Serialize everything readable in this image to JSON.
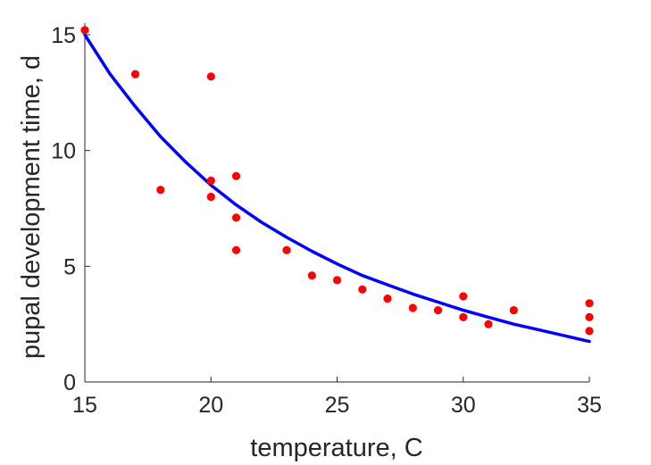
{
  "chart_data": {
    "type": "scatter",
    "title": "",
    "xlabel": "temperature, C",
    "ylabel": "pupal development time, d",
    "xlim": [
      15,
      35
    ],
    "ylim": [
      0,
      15.5
    ],
    "xticks": [
      15,
      20,
      25,
      30,
      35
    ],
    "yticks": [
      0,
      5,
      10,
      15
    ],
    "grid": false,
    "legend": "none",
    "series": [
      {
        "type": "scatter",
        "color": "#ff0000",
        "points": [
          [
            15,
            15.2
          ],
          [
            17,
            13.3
          ],
          [
            18,
            8.3
          ],
          [
            20,
            13.2
          ],
          [
            20,
            8.7
          ],
          [
            20,
            8.0
          ],
          [
            21,
            8.9
          ],
          [
            21,
            7.1
          ],
          [
            21,
            5.7
          ],
          [
            23,
            5.7
          ],
          [
            24,
            4.6
          ],
          [
            25,
            4.4
          ],
          [
            26,
            4.0
          ],
          [
            27,
            3.6
          ],
          [
            28,
            3.2
          ],
          [
            29,
            3.1
          ],
          [
            30,
            3.7
          ],
          [
            30,
            2.8
          ],
          [
            31,
            2.5
          ],
          [
            32,
            3.1
          ],
          [
            35,
            3.4
          ],
          [
            35,
            2.8
          ],
          [
            35,
            2.2
          ]
        ]
      },
      {
        "type": "line",
        "color": "#0000ff",
        "points": [
          [
            15,
            15.0
          ],
          [
            16,
            13.3
          ],
          [
            17,
            11.9
          ],
          [
            18,
            10.6
          ],
          [
            19,
            9.5
          ],
          [
            20,
            8.5
          ],
          [
            21,
            7.65
          ],
          [
            22,
            6.9
          ],
          [
            23,
            6.25
          ],
          [
            24,
            5.65
          ],
          [
            25,
            5.1
          ],
          [
            26,
            4.6
          ],
          [
            27,
            4.2
          ],
          [
            28,
            3.8
          ],
          [
            29,
            3.45
          ],
          [
            30,
            3.1
          ],
          [
            31,
            2.8
          ],
          [
            32,
            2.5
          ],
          [
            33,
            2.25
          ],
          [
            34,
            2.0
          ],
          [
            35,
            1.75
          ]
        ]
      }
    ]
  }
}
